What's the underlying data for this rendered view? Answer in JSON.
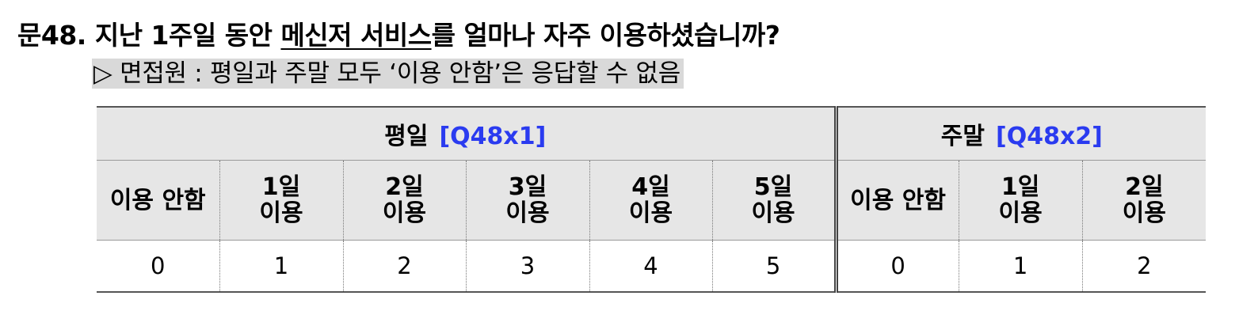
{
  "question": {
    "number": "문48.",
    "text_before": "지난 1주일 동안",
    "text_underlined": "메신저 서비스",
    "text_after": "를 얼마나 자주 이용하셨습니까?"
  },
  "interviewer_note": "▷ 면접원 : 평일과 주말 모두 ‘이용 안함’은 응답할 수 없음",
  "groups": [
    {
      "label": "평일",
      "code": "[Q48x1]"
    },
    {
      "label": "주말",
      "code": "[Q48x2]"
    }
  ],
  "weekday": {
    "headers": [
      {
        "line1": "이용 안함",
        "line2": ""
      },
      {
        "line1": "1일",
        "line2": "이용"
      },
      {
        "line1": "2일",
        "line2": "이용"
      },
      {
        "line1": "3일",
        "line2": "이용"
      },
      {
        "line1": "4일",
        "line2": "이용"
      },
      {
        "line1": "5일",
        "line2": "이용"
      }
    ],
    "codes": [
      "0",
      "1",
      "2",
      "3",
      "4",
      "5"
    ]
  },
  "weekend": {
    "headers": [
      {
        "line1": "이용 안함",
        "line2": ""
      },
      {
        "line1": "1일",
        "line2": "이용"
      },
      {
        "line1": "2일",
        "line2": "이용"
      }
    ],
    "codes": [
      "0",
      "1",
      "2"
    ]
  },
  "colors": {
    "code_blue": "#2a3bf0",
    "header_bg": "#e6e6e6",
    "note_bg": "#d9d9d9"
  }
}
